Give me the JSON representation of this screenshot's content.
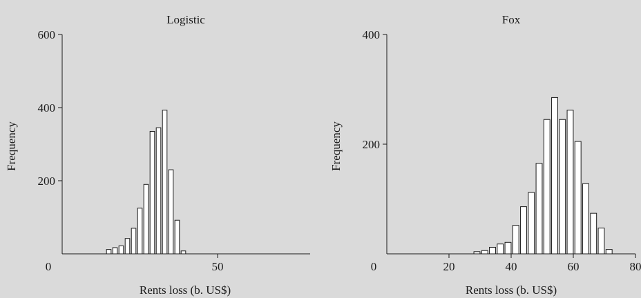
{
  "chart_data": [
    {
      "type": "bar",
      "title": "Logistic",
      "xlabel": "Rents loss (b. US$)",
      "ylabel": "Frequency",
      "origin_label": "0",
      "xticks": [
        50
      ],
      "xtick_labels": [
        "50"
      ],
      "yticks": [
        200,
        400,
        600
      ],
      "ytick_labels": [
        "200",
        "400",
        "600"
      ],
      "xlim": [
        0,
        80
      ],
      "ylim": [
        0,
        600
      ],
      "bin_width": 2,
      "categories": [
        "14-16",
        "16-18",
        "18-20",
        "20-22",
        "22-24",
        "24-26",
        "26-28",
        "28-30",
        "30-32",
        "32-34",
        "34-36",
        "36-38",
        "38-40",
        "40-42",
        "42-44",
        "44-46",
        "46-48"
      ],
      "x": [
        15,
        17,
        19,
        21,
        23,
        25,
        27,
        29,
        31,
        33,
        35,
        37,
        39,
        41,
        43,
        45,
        47
      ],
      "values": [
        12,
        17,
        22,
        42,
        70,
        125,
        190,
        335,
        345,
        393,
        230,
        92,
        8,
        0,
        0,
        0,
        0
      ],
      "grid": false,
      "legend": "none"
    },
    {
      "type": "bar",
      "title": "Fox",
      "xlabel": "Rents loss (b. US$)",
      "ylabel": "Frequency",
      "origin_label": "0",
      "xticks": [
        20,
        40,
        60,
        80
      ],
      "xtick_labels": [
        "20",
        "40",
        "60",
        "80"
      ],
      "yticks": [
        200,
        400
      ],
      "ytick_labels": [
        "200",
        "400"
      ],
      "xlim": [
        0,
        80
      ],
      "ylim": [
        0,
        400
      ],
      "bin_width": 2.5,
      "x": [
        29,
        31.5,
        34,
        36.5,
        39,
        41.5,
        44,
        46.5,
        49,
        51.5,
        54,
        56.5,
        59,
        61.5,
        64,
        66.5,
        69,
        71.5,
        74,
        76.5
      ],
      "values": [
        4,
        6,
        12,
        18,
        21,
        52,
        86,
        112,
        165,
        245,
        285,
        245,
        262,
        205,
        128,
        74,
        47,
        8,
        0,
        0
      ],
      "grid": false,
      "legend": "none"
    }
  ]
}
